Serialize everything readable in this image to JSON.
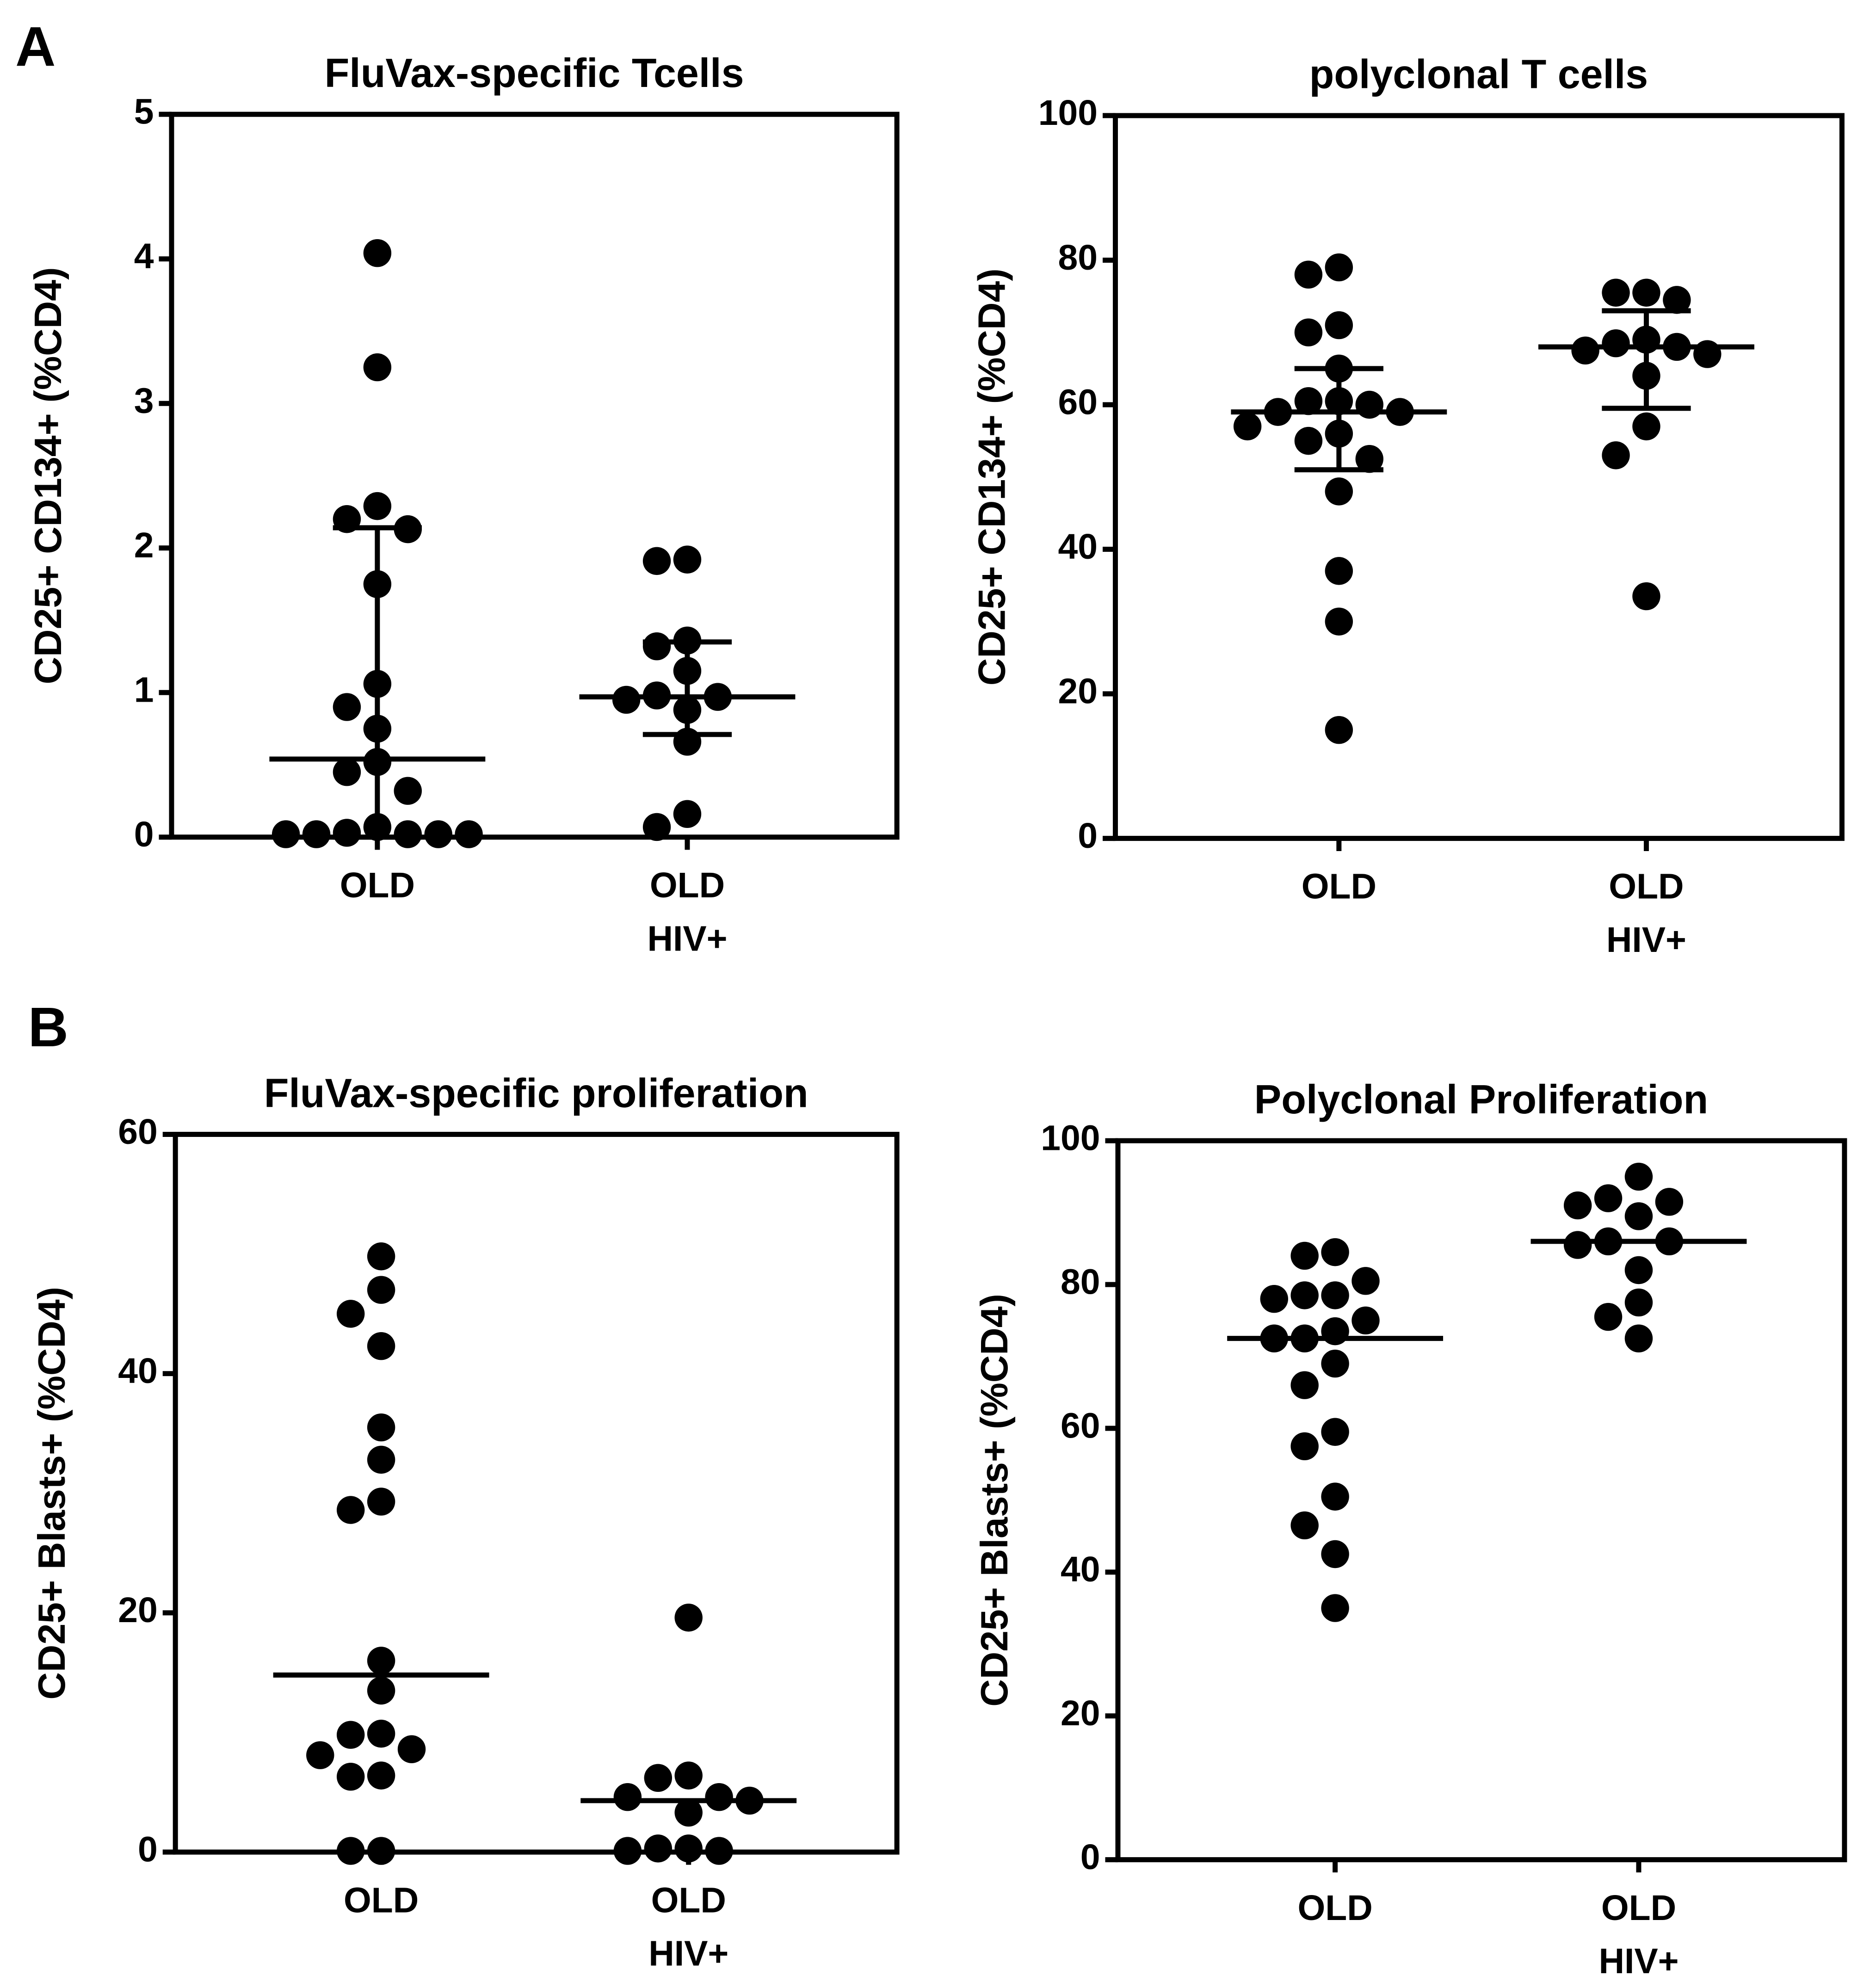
{
  "panels": [
    "A",
    "B"
  ],
  "chart_data": [
    {
      "type": "dot",
      "title": "FluVax-specific Tcells",
      "ylabel": "CD25+ CD134+ (%CD4)",
      "categories": [
        [
          "OLD"
        ],
        [
          "OLD",
          "HIV+"
        ]
      ],
      "color": "#000000",
      "values": [
        [
          4.04,
          3.25,
          2.29,
          2.2,
          2.13,
          1.75,
          1.06,
          0.9,
          0.75,
          0.52,
          0.45,
          0.32,
          0.07,
          0.03,
          0.02,
          0.02,
          0.02,
          0.02,
          0.02
        ],
        [
          1.91,
          1.92,
          1.36,
          1.32,
          1.15,
          0.98,
          0.97,
          0.95,
          0.88,
          0.66,
          0.16,
          0.07
        ]
      ],
      "medians": [
        0.54,
        0.97
      ],
      "error_bars": [
        [
          0,
          2.14
        ],
        [
          0.71,
          1.35
        ]
      ],
      "ylim": [
        0,
        5
      ],
      "yticks": [
        0,
        1,
        2,
        3,
        4,
        5
      ]
    },
    {
      "type": "dot",
      "title": "polyclonal T cells",
      "ylabel": "CD25+ CD134+ (%CD4)",
      "categories": [
        [
          "OLD"
        ],
        [
          "OLD",
          "HIV+"
        ]
      ],
      "color": "#000000",
      "values": [
        [
          79,
          78,
          71,
          70,
          65,
          60,
          60.5,
          60.5,
          59,
          59,
          57,
          56,
          55,
          52.5,
          48,
          37,
          30,
          15
        ],
        [
          75.5,
          74.5,
          75.5,
          67.5,
          68,
          68.5,
          67,
          69,
          64,
          57,
          53,
          33.5
        ]
      ],
      "medians": [
        59,
        68
      ],
      "error_bars": [
        [
          51,
          65
        ],
        [
          59.5,
          73
        ]
      ],
      "ylim": [
        0,
        100
      ],
      "yticks": [
        0,
        20,
        40,
        60,
        80,
        100
      ]
    },
    {
      "type": "dot",
      "title": "FluVax-specific proliferation",
      "ylabel": "CD25+ Blasts+ (%CD4)",
      "categories": [
        [
          "OLD"
        ],
        [
          "OLD",
          "HIV+"
        ]
      ],
      "color": "#000000",
      "values": [
        [
          49.8,
          47,
          45,
          42.3,
          35.5,
          32.8,
          29.3,
          28.6,
          16,
          13.5,
          9.9,
          9.8,
          8.6,
          8.1,
          6.3,
          6.4,
          0.1,
          0.1
        ],
        [
          19.6,
          6.2,
          6.4,
          4.6,
          4.6,
          4.3,
          3.3,
          0.1,
          0.3,
          0.1,
          0.3
        ]
      ],
      "medians": [
        14.8,
        4.3
      ],
      "ylim": [
        0,
        60
      ],
      "yticks": [
        0,
        20,
        40,
        60
      ]
    },
    {
      "type": "dot",
      "title": "Polyclonal Proliferation",
      "ylabel": "CD25+ Blasts+ (%CD4)",
      "categories": [
        [
          "OLD"
        ],
        [
          "OLD",
          "HIV+"
        ]
      ],
      "color": "#000000",
      "values": [
        [
          84,
          84.5,
          80.5,
          78,
          78.5,
          78.5,
          75,
          73.5,
          72.5,
          72.5,
          69,
          66,
          59.5,
          57.5,
          50.5,
          46.5,
          42.5,
          35
        ],
        [
          95,
          92,
          91.5,
          91,
          89.5,
          86,
          86,
          85.5,
          82,
          77.5,
          75.5,
          72.5
        ]
      ],
      "medians": [
        72.5,
        86
      ],
      "ylim": [
        0,
        100
      ],
      "yticks": [
        0,
        20,
        40,
        60,
        80,
        100
      ]
    }
  ]
}
